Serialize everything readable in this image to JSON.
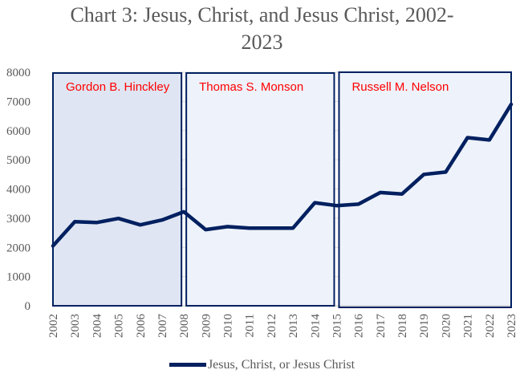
{
  "chart_data": {
    "type": "line",
    "title": "Chart 3: Jesus, Christ, and Jesus Christ, 2002-\n2023",
    "xlabel": "",
    "ylabel": "",
    "ylim": [
      0,
      8000
    ],
    "yticks": [
      "0",
      "1000",
      "2000",
      "3000",
      "4000",
      "5000",
      "6000",
      "7000",
      "8000"
    ],
    "categories": [
      "2002",
      "2003",
      "2004",
      "2005",
      "2006",
      "2007",
      "2008",
      "2009",
      "2010",
      "2011",
      "2012",
      "2013",
      "2014",
      "2015",
      "2016",
      "2017",
      "2018",
      "2019",
      "2020",
      "2021",
      "2022",
      "2023"
    ],
    "series": [
      {
        "name": "Jesus, Christ, or Jesus Christ",
        "color": "#002060",
        "values": [
          2050,
          2880,
          2850,
          2990,
          2770,
          2940,
          3220,
          2610,
          2710,
          2660,
          2660,
          2660,
          3530,
          3430,
          3480,
          3880,
          3830,
          4500,
          4580,
          5760,
          5680,
          6900
        ]
      }
    ],
    "annotations": [
      {
        "label": "Gordon B. Hinckley",
        "from": "2002",
        "to": "2008",
        "fill": "#dfe5f2"
      },
      {
        "label": "Thomas S. Monson",
        "from": "2008",
        "to": "2015",
        "fill": "#eef2fa"
      },
      {
        "label": "Russell M. Nelson",
        "from": "2015",
        "to": "2023",
        "fill": "#eef2fa"
      }
    ],
    "legend_position": "bottom"
  }
}
